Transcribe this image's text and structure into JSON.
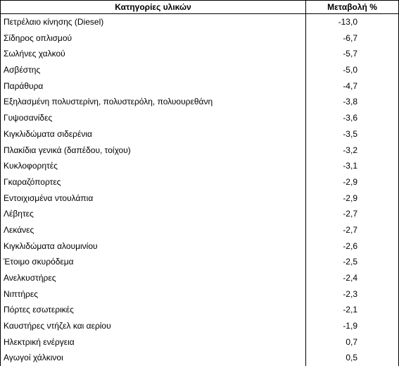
{
  "table": {
    "header": {
      "category": "Κατηγορίες υλικών",
      "change": "Μεταβολή %"
    },
    "rows": [
      {
        "category": "Πετρέλαιο κίνησης (Diesel)",
        "change": "-13,0"
      },
      {
        "category": "Σίδηρος οπλισμού",
        "change": "-6,7"
      },
      {
        "category": "Σωλήνες χαλκού",
        "change": "-5,7"
      },
      {
        "category": "Ασβέστης",
        "change": "-5,0"
      },
      {
        "category": "Παράθυρα",
        "change": "-4,7"
      },
      {
        "category": "Εξηλασμένη πολυστερίνη, πολυστερόλη, πολυουρεθάνη",
        "change": "-3,8"
      },
      {
        "category": "Γυψοσανίδες",
        "change": "-3,6"
      },
      {
        "category": "Κιγκλιδώματα σιδερένια",
        "change": "-3,5"
      },
      {
        "category": "Πλακίδια γενικά (δαπέδου, τοίχου)",
        "change": "-3,2"
      },
      {
        "category": "Κυκλοφορητές",
        "change": "-3,1"
      },
      {
        "category": "Γκαραζόπορτες",
        "change": "-2,9"
      },
      {
        "category": "Εντοιχισμένα ντουλάπια",
        "change": "-2,9"
      },
      {
        "category": "Λέβητες",
        "change": "-2,7"
      },
      {
        "category": "Λεκάνες",
        "change": "-2,7"
      },
      {
        "category": "Κιγκλιδώματα αλουμινίου",
        "change": "-2,6"
      },
      {
        "category": "Έτοιμο σκυρόδεμα",
        "change": "-2,5"
      },
      {
        "category": "Ανελκυστήρες",
        "change": "-2,4"
      },
      {
        "category": "Νιπτήρες",
        "change": "-2,3"
      },
      {
        "category": "Πόρτες εσωτερικές",
        "change": "-2,1"
      },
      {
        "category": "Καυστήρες ντήζελ και αερίου",
        "change": "-1,9"
      },
      {
        "category": "Ηλεκτρική ενέργεια",
        "change": "0,7"
      },
      {
        "category": "Αγωγοί χάλκινοι",
        "change": "0,5"
      }
    ]
  }
}
